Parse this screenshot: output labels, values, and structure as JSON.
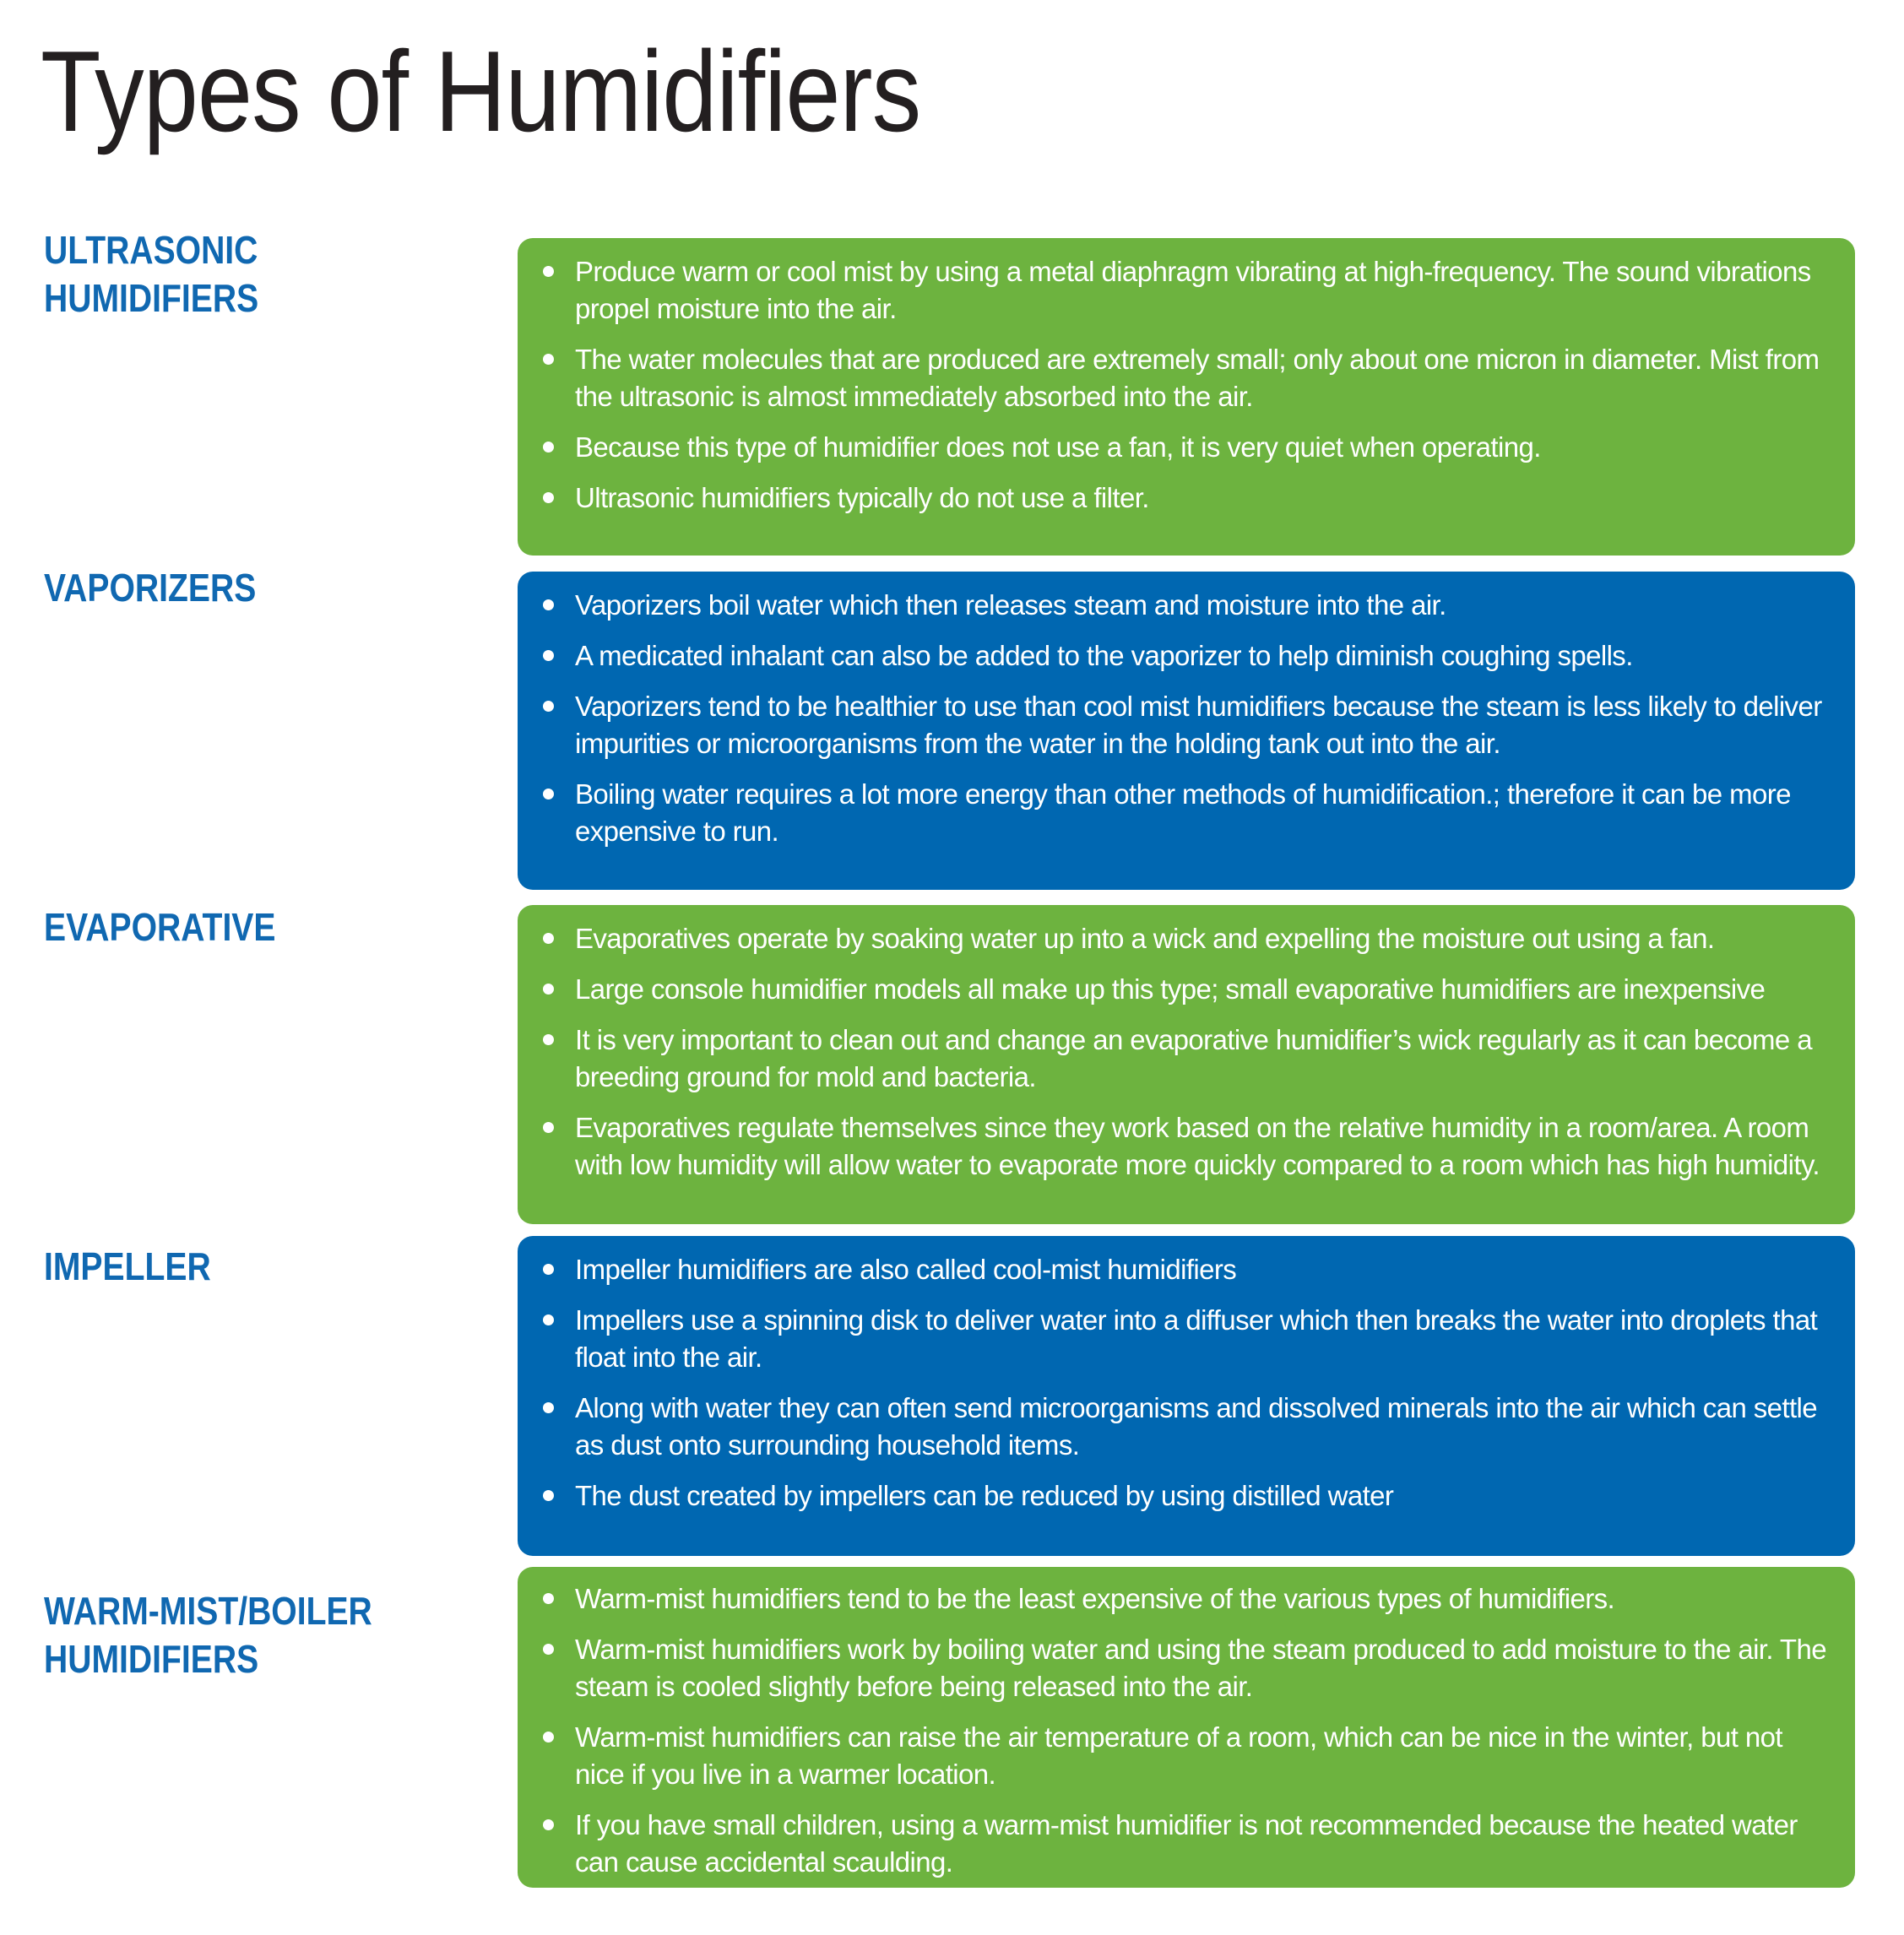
{
  "title": "Types of Humidifiers",
  "colors": {
    "title": "#231f20",
    "heading": "#1068b1",
    "green_panel": "#6db33f",
    "blue_panel": "#0067b1",
    "bullet_text": "#ffffff"
  },
  "sections": [
    {
      "heading": "ULTRASONIC HUMIDIFIERS",
      "panel_color": "green",
      "bullets": [
        "Produce warm or cool mist by using a metal diaphragm vibrating at high-frequency. The sound vibrations propel moisture into the air.",
        "The water molecules that are produced are extremely small; only about one micron in diameter. Mist from the ultrasonic is almost immediately absorbed into the air.",
        "Because this type of humidifier does not use a fan, it is very quiet when operating.",
        "Ultrasonic humidifiers typically do not use a filter."
      ]
    },
    {
      "heading": "VAPORIZERS",
      "panel_color": "blue",
      "bullets": [
        "Vaporizers boil water which then releases steam and moisture into the air.",
        "A medicated inhalant can also be added to the vaporizer to help diminish coughing spells.",
        "Vaporizers tend to be healthier to use than cool mist humidifiers because the steam is less likely to deliver impurities or microorganisms from the water in the holding tank out into the air.",
        "Boiling water requires a lot more energy than other methods of humidification.; therefore it can be more expensive to run."
      ]
    },
    {
      "heading": "EVAPORATIVE",
      "panel_color": "green",
      "bullets": [
        "Evaporatives operate by soaking water up into a wick and expelling the moisture out using a fan.",
        "Large console humidifier models all make up this type; small evaporative humidifiers are inexpensive",
        "It is very important to clean out and change an evaporative humidifier’s wick regularly as it can become a breeding ground for mold and bacteria.",
        "Evaporatives regulate themselves since they work based on the relative humidity in a room/area. A room with low humidity will allow water to evaporate more quickly compared to a room which has high humidity."
      ]
    },
    {
      "heading": "IMPELLER",
      "panel_color": "blue",
      "bullets": [
        "Impeller humidifiers are also called cool-mist humidifiers",
        "Impellers use a spinning disk to deliver water into a diffuser which then breaks the water into droplets that float into the air.",
        "Along with water they can often send microorganisms and dissolved minerals into the air which can settle as dust onto surrounding household items.",
        "The dust created by impellers can be reduced by using distilled water"
      ]
    },
    {
      "heading": "WARM-MIST/BOILER HUMIDIFIERS",
      "panel_color": "green",
      "bullets": [
        "Warm-mist humidifiers tend to be the least expensive of the various types of humidifiers.",
        "Warm-mist humidifiers work by boiling water and using the steam produced to add moisture to the air. The steam is cooled slightly before being released into the air.",
        "Warm-mist humidifiers can raise the air temperature of a room, which can be nice in the winter, but not nice if you live in a warmer location.",
        "If you have small children, using a warm-mist humidifier is not recommended because the heated water can cause accidental scaulding."
      ]
    }
  ]
}
